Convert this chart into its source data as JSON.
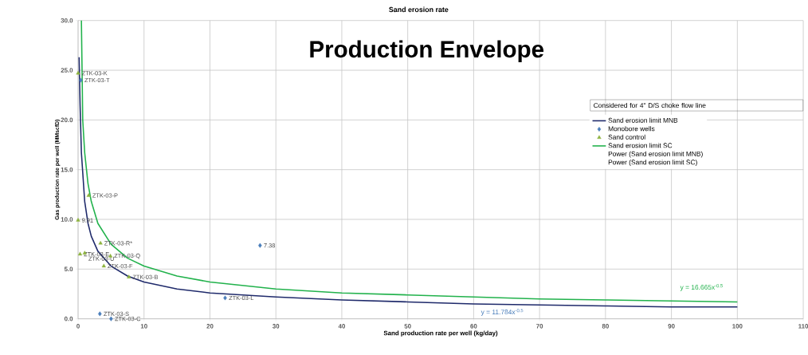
{
  "chart_data": {
    "type": "scatter",
    "title": "Production Envelope",
    "subtitle": "Sand erosion rate",
    "xlabel": "Sand production rate per well (kg/day)",
    "ylabel": "Gas production rate per well (MMscfD)",
    "legend_title": "Considered  for 4\" D/S choke flow line",
    "legend": "top right",
    "grid": true,
    "xlim": [
      0,
      110
    ],
    "xticks": [
      0,
      10,
      20,
      30,
      40,
      50,
      60,
      70,
      80,
      90,
      100,
      110
    ],
    "ylim": [
      0,
      30
    ],
    "yticks": [
      {
        "value": 0,
        "label": "0.0"
      },
      {
        "value": 5,
        "label": "5.0"
      },
      {
        "value": 10,
        "label": "10.0"
      },
      {
        "value": 15,
        "label": "15.0"
      },
      {
        "value": 20,
        "label": "20.0"
      },
      {
        "value": 25,
        "label": "25.0"
      },
      {
        "value": 30,
        "label": "30.0"
      }
    ],
    "series": [
      {
        "name": "Sand erosion limit MNB",
        "type": "line",
        "marker": "none",
        "color": "#1f2a6b",
        "x": [
          0.15,
          0.3,
          0.5,
          1,
          1.5,
          2,
          3,
          5,
          7.5,
          10,
          15,
          20,
          30,
          40,
          50,
          60,
          70,
          80,
          90,
          100
        ],
        "values": [
          26.3,
          21.5,
          16.7,
          11.8,
          9.6,
          8.3,
          6.8,
          5.3,
          4.3,
          3.7,
          3.0,
          2.6,
          2.2,
          1.9,
          1.7,
          1.5,
          1.4,
          1.3,
          1.2,
          1.2
        ]
      },
      {
        "name": "Monobore wells",
        "marker": "diamond",
        "color": "#4a7ebb",
        "x": [
          0.4,
          3.3,
          5.0,
          22.3,
          27.6
        ],
        "values": [
          24.0,
          0.5,
          0.0,
          2.1,
          7.38
        ]
      },
      {
        "name": "Sand control",
        "marker": "triangle",
        "color": "#8db33f",
        "x": [
          0.0,
          1.6,
          0.0,
          3.4,
          0.3,
          1.0,
          4.9,
          3.9,
          7.7
        ],
        "values": [
          24.7,
          12.4,
          9.91,
          7.6,
          6.5,
          6.6,
          6.3,
          5.3,
          4.2
        ]
      },
      {
        "name": "Sand erosion limit SC",
        "type": "line",
        "marker": "none",
        "color": "#22b24c",
        "x": [
          0.5,
          0.7,
          1,
          1.5,
          2,
          3,
          5,
          7.5,
          10,
          15,
          20,
          30,
          40,
          50,
          60,
          70,
          80,
          90,
          100
        ],
        "values": [
          30.0,
          20.0,
          16.7,
          13.6,
          11.8,
          9.6,
          7.5,
          6.1,
          5.3,
          4.3,
          3.7,
          3.0,
          2.6,
          2.4,
          2.2,
          2.0,
          1.9,
          1.8,
          1.7
        ]
      },
      {
        "name": "Power (Sand erosion limit MNB)",
        "type": "line"
      },
      {
        "name": "Power (Sand erosion limit SC)",
        "type": "line"
      }
    ],
    "annotations": [
      {
        "text": "ZTK-03-K",
        "x": 0.0,
        "y": 24.7
      },
      {
        "text": "ZTK-03-T",
        "x": 0.4,
        "y": 24.0
      },
      {
        "text": "ZTK-03-P",
        "x": 1.6,
        "y": 12.4
      },
      {
        "text": "9.91",
        "x": 0.0,
        "y": 9.91
      },
      {
        "text": "ZTK-03-R*",
        "x": 3.4,
        "y": 7.6
      },
      {
        "text": "ZTK-03-E",
        "x": 0.3,
        "y": 6.5
      },
      {
        "text": "ZTK-03-U",
        "x": 1.0,
        "y": 6.6
      },
      {
        "text": "ZTK-03-Q",
        "x": 4.9,
        "y": 6.3
      },
      {
        "text": "ZTK-03-F",
        "x": 3.9,
        "y": 5.3
      },
      {
        "text": "ZTK-03-B",
        "x": 7.7,
        "y": 4.2
      },
      {
        "text": "ZTK-03-S",
        "x": 3.3,
        "y": 0.5
      },
      {
        "text": "ZTK-03-C",
        "x": 5.0,
        "y": 0.0
      },
      {
        "text": "ZTK-03-L",
        "x": 22.3,
        "y": 2.1
      },
      {
        "text": "7.38",
        "x": 27.6,
        "y": 7.38
      },
      "y = 11.784x$^{-0.5}$",
      "y = 16.665x$^{-0.5}$"
    ]
  }
}
